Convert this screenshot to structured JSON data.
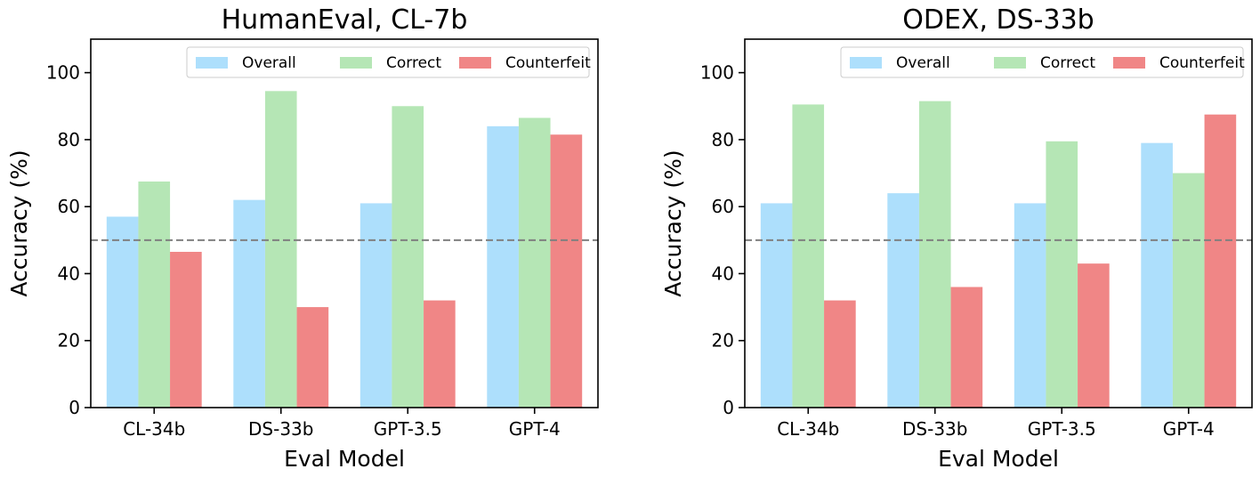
{
  "chart_data": [
    {
      "type": "bar",
      "title": "HumanEval, CL-7b",
      "xlabel": "Eval Model",
      "ylabel": "Accuracy (%)",
      "ylim": [
        0,
        110
      ],
      "yticks": [
        0,
        20,
        40,
        60,
        80,
        100
      ],
      "categories": [
        "CL-34b",
        "DS-33b",
        "GPT-3.5",
        "GPT-4"
      ],
      "series": [
        {
          "name": "Overall",
          "color": "#ADDFFC",
          "values": [
            57,
            62,
            61,
            84
          ]
        },
        {
          "name": "Correct",
          "color": "#B5E6B5",
          "values": [
            67.5,
            94.5,
            90,
            86.5
          ]
        },
        {
          "name": "Counterfeit",
          "color": "#F08686",
          "values": [
            46.5,
            30,
            32,
            81.5
          ]
        }
      ],
      "reference_line": {
        "y": 50,
        "style": "dashed",
        "color": "#808080"
      },
      "legend": "top-right",
      "grid": false
    },
    {
      "type": "bar",
      "title": "ODEX, DS-33b",
      "xlabel": "Eval Model",
      "ylabel": "Accuracy (%)",
      "ylim": [
        0,
        110
      ],
      "yticks": [
        0,
        20,
        40,
        60,
        80,
        100
      ],
      "categories": [
        "CL-34b",
        "DS-33b",
        "GPT-3.5",
        "GPT-4"
      ],
      "series": [
        {
          "name": "Overall",
          "color": "#ADDFFC",
          "values": [
            61,
            64,
            61,
            79
          ]
        },
        {
          "name": "Correct",
          "color": "#B5E6B5",
          "values": [
            90.5,
            91.5,
            79.5,
            70
          ]
        },
        {
          "name": "Counterfeit",
          "color": "#F08686",
          "values": [
            32,
            36,
            43,
            87.5
          ]
        }
      ],
      "reference_line": {
        "y": 50,
        "style": "dashed",
        "color": "#808080"
      },
      "legend": "top-right",
      "grid": false
    }
  ]
}
